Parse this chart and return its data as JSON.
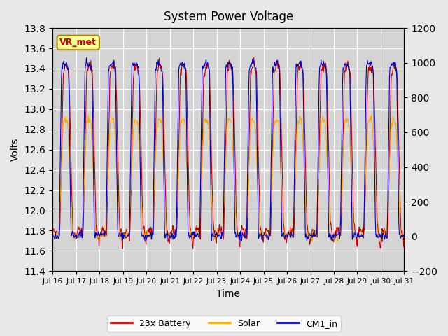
{
  "title": "System Power Voltage",
  "xlabel": "Time",
  "ylabel": "Volts",
  "ylim_left": [
    11.4,
    13.8
  ],
  "ylim_right": [
    -200,
    1200
  ],
  "background_color": "#e8e8e8",
  "plot_bg_color": "#d4d4d4",
  "grid_color": "white",
  "colors": {
    "battery": "#cc0000",
    "solar": "#ffaa00",
    "cm1": "#0000cc"
  },
  "legend_labels": [
    "23x Battery",
    "Solar",
    "CM1_in"
  ],
  "annotation_text": "VR_met",
  "annotation_color": "#cc0000",
  "annotation_bg": "#ffff99",
  "annotation_border": "#aa8800",
  "x_tick_labels": [
    "Jul 16",
    "Jul 17",
    "Jul 18",
    "Jul 19",
    "Jul 20",
    "Jul 21",
    "Jul 22",
    "Jul 23",
    "Jul 24",
    "Jul 25",
    "Jul 26",
    "Jul 27",
    "Jul 28",
    "Jul 29",
    "Jul 30",
    "Jul 31"
  ],
  "n_days": 15,
  "points_per_day": 48
}
